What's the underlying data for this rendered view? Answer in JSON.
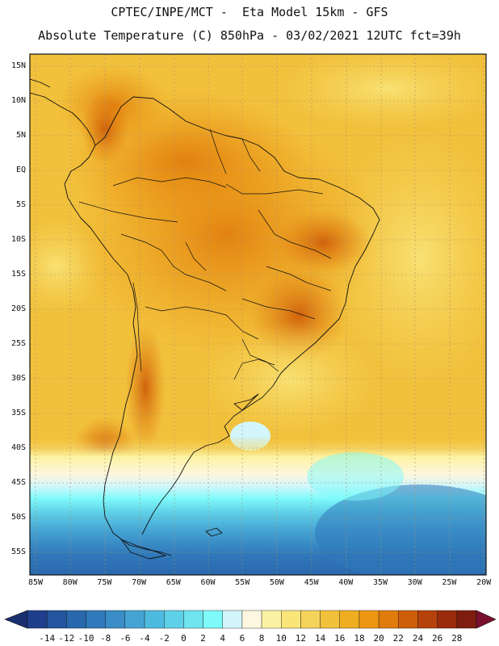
{
  "title_line1": "CPTEC/INPE/MCT -  Eta Model 15km - GFS",
  "title_line2": "Absolute Temperature (C) 850hPa - 03/02/2021 12UTC fct=39h",
  "lat_labels": [
    "15N",
    "10N",
    "5N",
    "EQ",
    "5S",
    "10S",
    "15S",
    "20S",
    "25S",
    "30S",
    "35S",
    "40S",
    "45S",
    "50S",
    "55S"
  ],
  "lon_labels": [
    "85W",
    "80W",
    "75W",
    "70W",
    "65W",
    "60W",
    "55W",
    "50W",
    "45W",
    "40W",
    "35W",
    "30W",
    "25W",
    "20W"
  ],
  "colorbar": {
    "labels": [
      "-14",
      "-12",
      "-10",
      "-8",
      "-6",
      "-4",
      "-2",
      "0",
      "2",
      "4",
      "6",
      "8",
      "10",
      "12",
      "14",
      "16",
      "18",
      "20",
      "22",
      "24",
      "26",
      "28"
    ],
    "colors": [
      "#1f3f8c",
      "#24559e",
      "#2a68ad",
      "#3079ba",
      "#3a8dc6",
      "#45a4d3",
      "#4fbadf",
      "#5ed0e8",
      "#6ee4ef",
      "#7ffafa",
      "#d2f6fb",
      "#fdf6e0",
      "#fbf3a3",
      "#f9e57a",
      "#f5d35a",
      "#f2c13c",
      "#efad22",
      "#ec9612",
      "#e07b0c",
      "#cf5e0a",
      "#b6420b",
      "#9a2c0c",
      "#7e1c10"
    ]
  }
}
